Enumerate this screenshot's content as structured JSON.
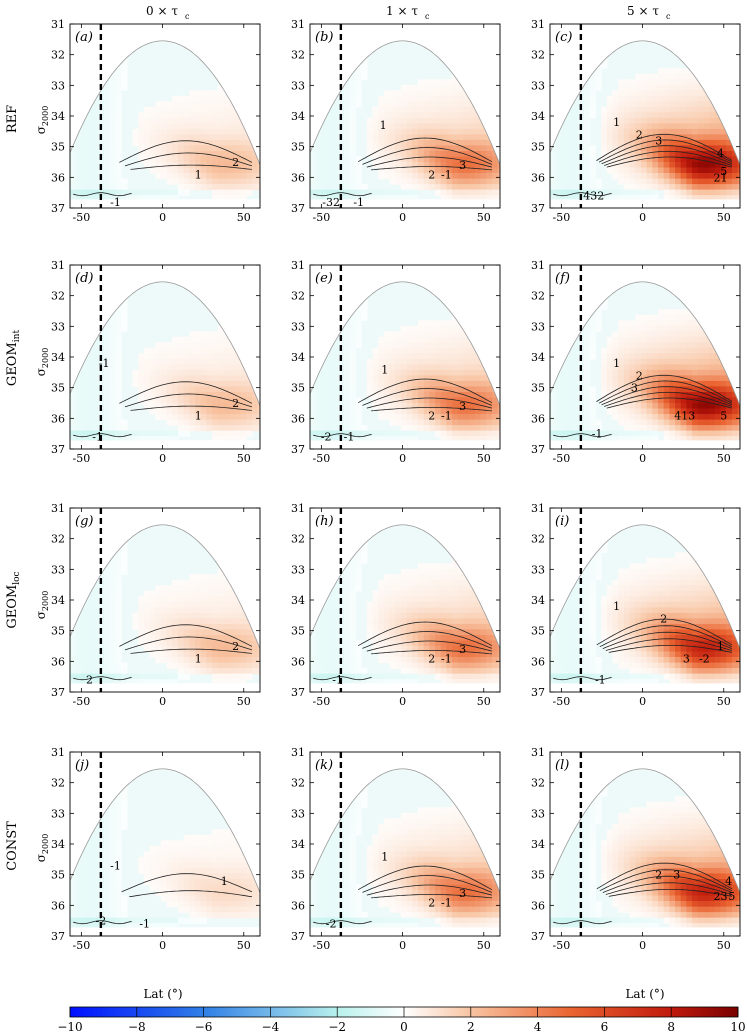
{
  "chart_data": {
    "type": "heatmap",
    "title": "",
    "column_titles": [
      "0 × τ",
      "1 × τ",
      "5 × τ"
    ],
    "column_title_subscript": "c",
    "rows": [
      {
        "name": "REF",
        "base": "REF",
        "sub": ""
      },
      {
        "name": "GEOM_int",
        "base": "GEOM",
        "sub": "int"
      },
      {
        "name": "GEOM_loc",
        "base": "GEOM",
        "sub": "loc"
      },
      {
        "name": "CONST",
        "base": "CONST",
        "sub": ""
      }
    ],
    "xlabel": "Lat (°)",
    "ylabel_base": "σ",
    "ylabel_sub": "2000",
    "xlim": [
      -57,
      60
    ],
    "ylim": [
      37,
      31
    ],
    "xticks": [
      -50,
      0,
      50
    ],
    "yticks": [
      31,
      32,
      33,
      34,
      35,
      36,
      37
    ],
    "dashed_line_lat": -38,
    "colorbar": {
      "range": [
        -10,
        10
      ],
      "ticks": [
        -10,
        -8,
        -6,
        -4,
        -2,
        0,
        2,
        4,
        6,
        8,
        10
      ]
    },
    "panels": [
      {
        "label": "(a)",
        "row": 0,
        "col": 0,
        "peak": 1.5,
        "contours": [
          {
            "text": "1",
            "lat": 22,
            "sigma": 35.9
          },
          {
            "text": "2",
            "lat": 45,
            "sigma": 35.5
          },
          {
            "text": "-1",
            "lat": -29,
            "sigma": 36.8
          }
        ]
      },
      {
        "label": "(b)",
        "row": 0,
        "col": 1,
        "peak": 3.0,
        "contours": [
          {
            "text": "1",
            "lat": -12,
            "sigma": 34.3
          },
          {
            "text": "2",
            "lat": 18,
            "sigma": 35.9
          },
          {
            "text": "-1",
            "lat": 27,
            "sigma": 35.9
          },
          {
            "text": "3",
            "lat": 37,
            "sigma": 35.6
          },
          {
            "text": "-32",
            "lat": -44,
            "sigma": 36.8
          },
          {
            "text": "-1",
            "lat": -27,
            "sigma": 36.8
          }
        ]
      },
      {
        "label": "(c)",
        "row": 0,
        "col": 2,
        "peak": 6.0,
        "contours": [
          {
            "text": "1",
            "lat": -16,
            "sigma": 34.2
          },
          {
            "text": "2",
            "lat": -2,
            "sigma": 34.6
          },
          {
            "text": "3",
            "lat": 10,
            "sigma": 34.8
          },
          {
            "text": "4",
            "lat": 48,
            "sigma": 35.2
          },
          {
            "text": "5",
            "lat": 50,
            "sigma": 35.8
          },
          {
            "text": "21",
            "lat": 48,
            "sigma": 36.0
          },
          {
            "text": "432",
            "lat": -30,
            "sigma": 36.6
          }
        ]
      },
      {
        "label": "(d)",
        "row": 1,
        "col": 0,
        "peak": 1.5,
        "contours": [
          {
            "text": "-1",
            "lat": -36,
            "sigma": 34.2
          },
          {
            "text": "1",
            "lat": 22,
            "sigma": 35.9
          },
          {
            "text": "2",
            "lat": 45,
            "sigma": 35.5
          },
          {
            "text": "-1",
            "lat": -40,
            "sigma": 36.6
          }
        ]
      },
      {
        "label": "(e)",
        "row": 1,
        "col": 1,
        "peak": 3.0,
        "contours": [
          {
            "text": "1",
            "lat": -11,
            "sigma": 34.4
          },
          {
            "text": "2",
            "lat": 18,
            "sigma": 35.9
          },
          {
            "text": "-1",
            "lat": 27,
            "sigma": 35.9
          },
          {
            "text": "3",
            "lat": 37,
            "sigma": 35.6
          },
          {
            "text": "-2",
            "lat": -47,
            "sigma": 36.6
          },
          {
            "text": "-1",
            "lat": -33,
            "sigma": 36.6
          }
        ]
      },
      {
        "label": "(f)",
        "row": 1,
        "col": 2,
        "peak": 6.0,
        "contours": [
          {
            "text": "1",
            "lat": -16,
            "sigma": 34.2
          },
          {
            "text": "2",
            "lat": -2,
            "sigma": 34.6
          },
          {
            "text": "3",
            "lat": -5,
            "sigma": 35.0
          },
          {
            "text": "413",
            "lat": 26,
            "sigma": 35.9
          },
          {
            "text": "5",
            "lat": 50,
            "sigma": 35.9
          },
          {
            "text": "-1",
            "lat": -28,
            "sigma": 36.5
          }
        ]
      },
      {
        "label": "(g)",
        "row": 2,
        "col": 0,
        "peak": 1.5,
        "contours": [
          {
            "text": "1",
            "lat": 22,
            "sigma": 35.9
          },
          {
            "text": "2",
            "lat": 45,
            "sigma": 35.5
          },
          {
            "text": "2",
            "lat": -45,
            "sigma": 36.6
          }
        ]
      },
      {
        "label": "(h)",
        "row": 2,
        "col": 1,
        "peak": 3.0,
        "contours": [
          {
            "text": "2",
            "lat": 18,
            "sigma": 35.9
          },
          {
            "text": "-1",
            "lat": 27,
            "sigma": 35.9
          },
          {
            "text": "3",
            "lat": 37,
            "sigma": 35.6
          },
          {
            "text": "-1",
            "lat": -40,
            "sigma": 36.6
          }
        ]
      },
      {
        "label": "(i)",
        "row": 2,
        "col": 2,
        "peak": 5.0,
        "contours": [
          {
            "text": "1",
            "lat": -16,
            "sigma": 34.2
          },
          {
            "text": "2",
            "lat": 13,
            "sigma": 34.6
          },
          {
            "text": "3",
            "lat": 27,
            "sigma": 35.9
          },
          {
            "text": "-2",
            "lat": 38,
            "sigma": 35.9
          },
          {
            "text": "1",
            "lat": 48,
            "sigma": 35.5
          },
          {
            "text": "-1",
            "lat": -26,
            "sigma": 36.6
          }
        ]
      },
      {
        "label": "(j)",
        "row": 3,
        "col": 0,
        "peak": 0.8,
        "contours": [
          {
            "text": "-1",
            "lat": -29,
            "sigma": 34.7
          },
          {
            "text": "1",
            "lat": 38,
            "sigma": 35.2
          },
          {
            "text": "-2",
            "lat": -38,
            "sigma": 36.5
          },
          {
            "text": "-1",
            "lat": -11,
            "sigma": 36.6
          }
        ]
      },
      {
        "label": "(k)",
        "row": 3,
        "col": 1,
        "peak": 3.0,
        "contours": [
          {
            "text": "1",
            "lat": -11,
            "sigma": 34.4
          },
          {
            "text": "2",
            "lat": 18,
            "sigma": 35.9
          },
          {
            "text": "-1",
            "lat": 27,
            "sigma": 35.9
          },
          {
            "text": "3",
            "lat": 37,
            "sigma": 35.6
          },
          {
            "text": "-2",
            "lat": -44,
            "sigma": 36.6
          }
        ]
      },
      {
        "label": "(l)",
        "row": 3,
        "col": 2,
        "peak": 5.0,
        "contours": [
          {
            "text": "2",
            "lat": 10,
            "sigma": 35.0
          },
          {
            "text": "3",
            "lat": 21,
            "sigma": 35.0
          },
          {
            "text": "4",
            "lat": 53,
            "sigma": 35.2
          },
          {
            "text": "23",
            "lat": 48,
            "sigma": 35.7
          },
          {
            "text": "5",
            "lat": 55,
            "sigma": 35.7
          }
        ]
      }
    ]
  }
}
